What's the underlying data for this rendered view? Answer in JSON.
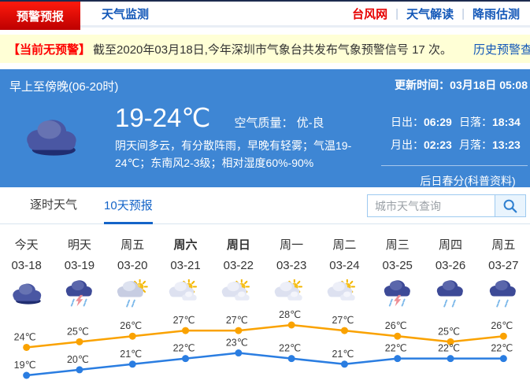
{
  "nav": {
    "tabs": [
      {
        "label": "预警预报",
        "active": true
      },
      {
        "label": "天气监测",
        "active": false
      }
    ],
    "links": [
      {
        "label": "台风网",
        "color": "#e60000"
      },
      {
        "label": "天气解读",
        "color": "#1257b8"
      },
      {
        "label": "降雨估测",
        "color": "#1257b8"
      }
    ]
  },
  "alert": {
    "badge": "【当前无预警】",
    "text": "截至2020年03月18日,今年深圳市气象台共发布气象预警信号 17 次。",
    "link": "历史预警查询"
  },
  "current": {
    "period": "早上至傍晚(06-20时)",
    "weather_icon": "overcast",
    "temp_range": "19-24℃",
    "air_quality": "空气质量： 优-良",
    "description": "阴天间多云，有分散阵雨，早晚有轻雾；气温19-24℃；东南风2-3级；相对湿度60%-90%",
    "update_label": "更新时间：",
    "update_time": "03月18日 05:08",
    "sunrise_label": "日出：",
    "sunrise": "06:29",
    "sunset_label": "日落：",
    "sunset": "18:34",
    "moonrise_label": "月出：",
    "moonrise": "02:23",
    "moonset_label": "月落：",
    "moonset": "13:23",
    "solar_term_link": "后日春分(科普资料)"
  },
  "tabs": {
    "hourly": "逐时天气",
    "ten_day": "10天预报"
  },
  "search": {
    "placeholder": "城市天气查询",
    "icon": "search-icon"
  },
  "forecast": {
    "days": [
      {
        "name": "今天",
        "date": "03-18",
        "icon": "overcast",
        "bold": false
      },
      {
        "name": "明天",
        "date": "03-19",
        "icon": "thunderstorm",
        "bold": false
      },
      {
        "name": "周五",
        "date": "03-20",
        "icon": "sun-shower",
        "bold": false
      },
      {
        "name": "周六",
        "date": "03-21",
        "icon": "partly-cloudy",
        "bold": true
      },
      {
        "name": "周日",
        "date": "03-22",
        "icon": "partly-cloudy",
        "bold": true
      },
      {
        "name": "周一",
        "date": "03-23",
        "icon": "partly-cloudy",
        "bold": false
      },
      {
        "name": "周二",
        "date": "03-24",
        "icon": "partly-cloudy",
        "bold": false
      },
      {
        "name": "周三",
        "date": "03-25",
        "icon": "thunderstorm",
        "bold": false
      },
      {
        "name": "周四",
        "date": "03-26",
        "icon": "rain",
        "bold": false
      },
      {
        "name": "周五",
        "date": "03-27",
        "icon": "rain",
        "bold": false
      }
    ]
  },
  "chart_data": {
    "type": "line",
    "categories": [
      "03-18",
      "03-19",
      "03-20",
      "03-21",
      "03-22",
      "03-23",
      "03-24",
      "03-25",
      "03-26",
      "03-27"
    ],
    "series": [
      {
        "name": "high",
        "color": "#faa200",
        "values": [
          24,
          25,
          26,
          27,
          27,
          28,
          27,
          26,
          25,
          26
        ]
      },
      {
        "name": "low",
        "color": "#2a7de1",
        "values": [
          19,
          20,
          21,
          22,
          23,
          22,
          21,
          22,
          22,
          22
        ]
      }
    ],
    "unit": "℃",
    "ylim": [
      19,
      28
    ],
    "legend": "none",
    "grid": false
  },
  "colors": {
    "accent_blue": "#1464c8",
    "panel_blue": "#3e86d4",
    "warn_red": "#e60000",
    "alert_bg": "#ffffd6"
  }
}
